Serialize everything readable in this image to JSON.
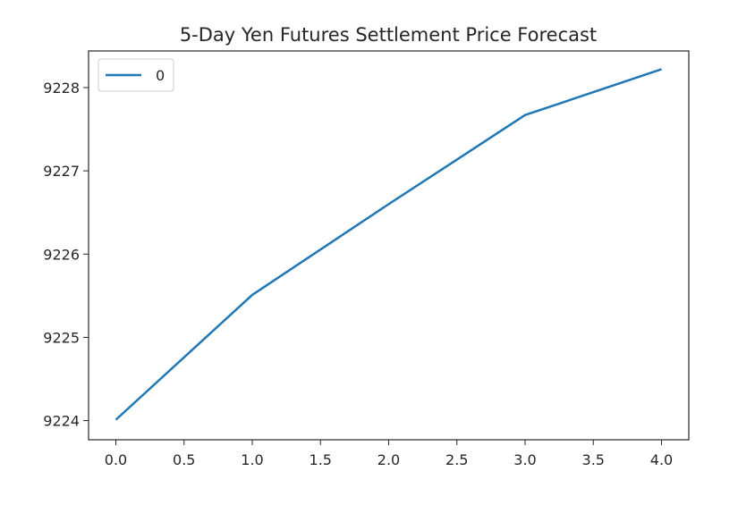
{
  "chart_data": {
    "type": "line",
    "title": "5-Day Yen Futures Settlement Price Forecast",
    "xlabel": "",
    "ylabel": "",
    "x": [
      0,
      1,
      2,
      3,
      4
    ],
    "series": [
      {
        "name": "0",
        "color": "#1f77b4",
        "values": [
          9224.01,
          9225.51,
          9226.6,
          9227.67,
          9228.22
        ]
      }
    ],
    "xlim": [
      -0.2,
      4.2
    ],
    "ylim": [
      9223.77,
      9228.44
    ],
    "xticks": [
      0.0,
      0.5,
      1.0,
      1.5,
      2.0,
      2.5,
      3.0,
      3.5,
      4.0
    ],
    "xtick_labels": [
      "0.0",
      "0.5",
      "1.0",
      "1.5",
      "2.0",
      "2.5",
      "3.0",
      "3.5",
      "4.0"
    ],
    "yticks": [
      9224,
      9225,
      9226,
      9227,
      9228
    ],
    "ytick_labels": [
      "9224",
      "9225",
      "9226",
      "9227",
      "9228"
    ],
    "grid": false,
    "legend_position": "top-left"
  }
}
